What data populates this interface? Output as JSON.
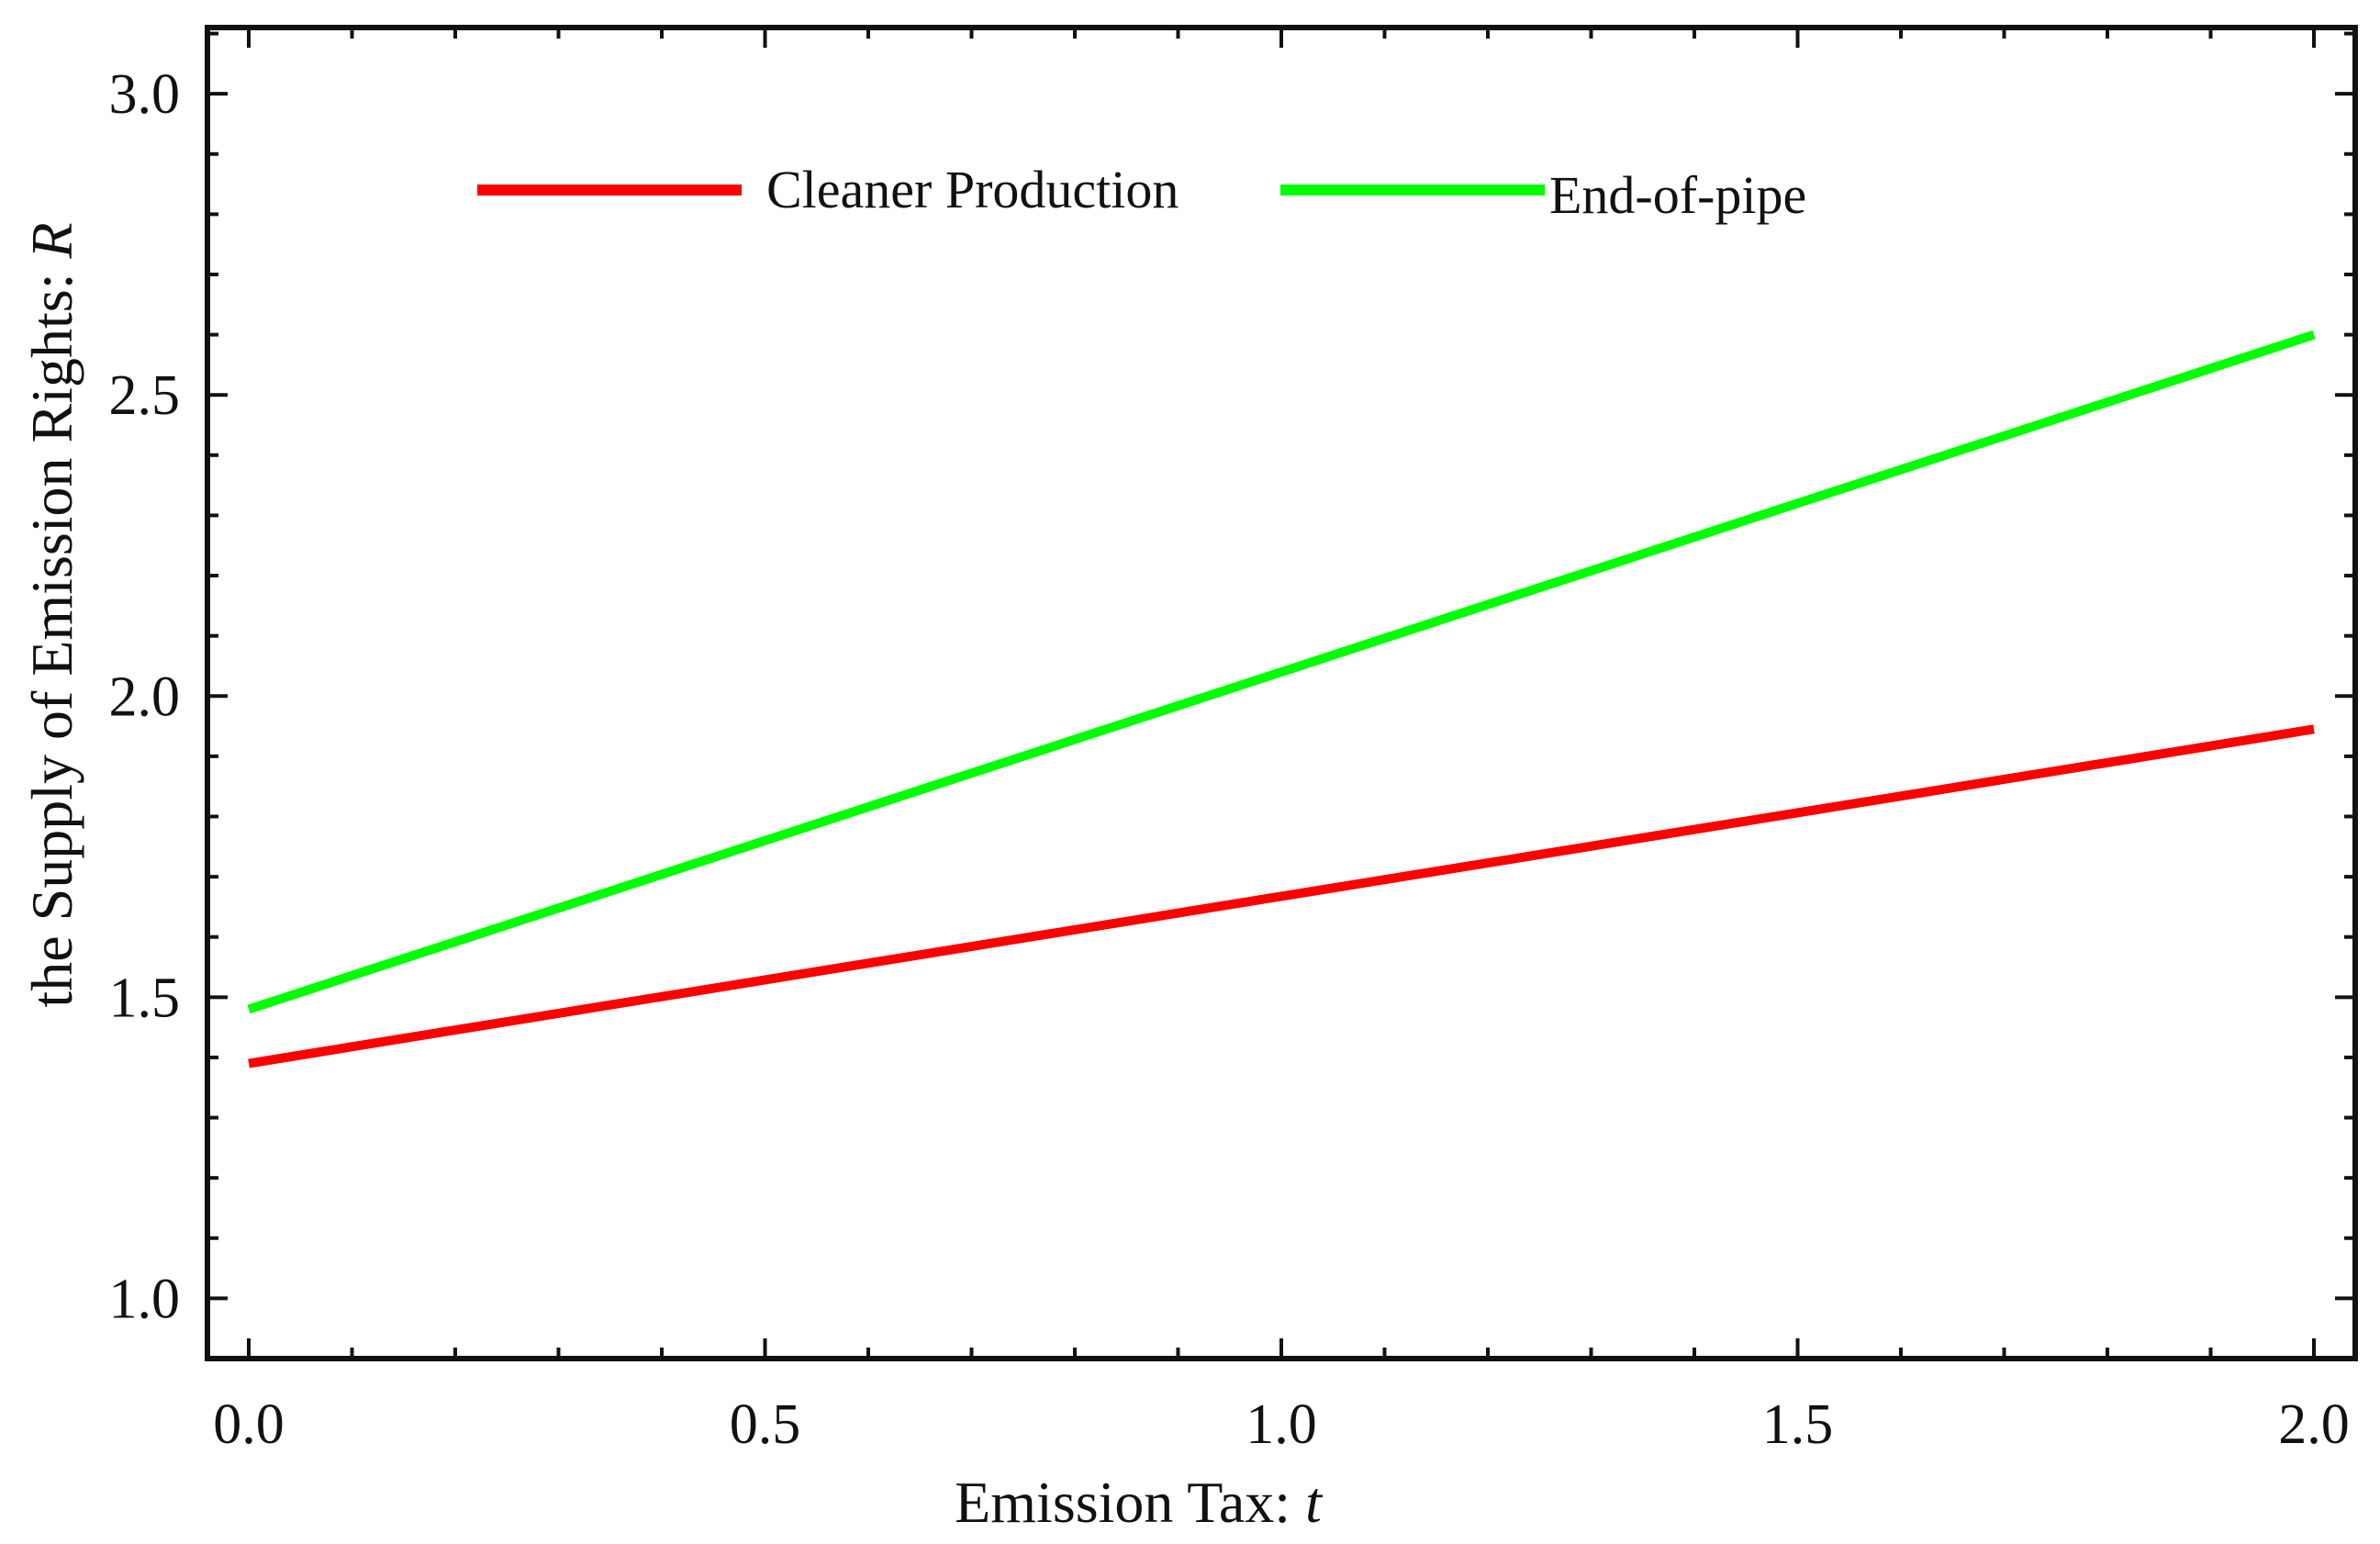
{
  "chart_data": {
    "type": "line",
    "title": "",
    "xlabel": "Emission Tax: ",
    "xlabel_var": "t",
    "ylabel": "the Supply of  Emission Rights: ",
    "ylabel_var": "R",
    "xlim": [
      -0.04,
      2.04
    ],
    "ylim": [
      0.9,
      3.11
    ],
    "x_ticks": [
      0.0,
      0.5,
      1.0,
      1.5,
      2.0
    ],
    "x_tick_labels": [
      "0.0",
      "0.5",
      "1.0",
      "1.5",
      "2.0"
    ],
    "y_ticks": [
      1.0,
      1.5,
      2.0,
      2.5,
      3.0
    ],
    "y_tick_labels": [
      "1.0",
      "1.5",
      "2.0",
      "2.5",
      "3.0"
    ],
    "grid": false,
    "legend_position": "top-center",
    "series": [
      {
        "name": "Cleaner Production",
        "color": "#ff0000",
        "x": [
          0.0,
          2.0
        ],
        "y": [
          1.39,
          1.945
        ]
      },
      {
        "name": "End-of-pipe",
        "color": "#00ff00",
        "x": [
          0.0,
          2.0
        ],
        "y": [
          1.48,
          2.6
        ]
      }
    ]
  }
}
